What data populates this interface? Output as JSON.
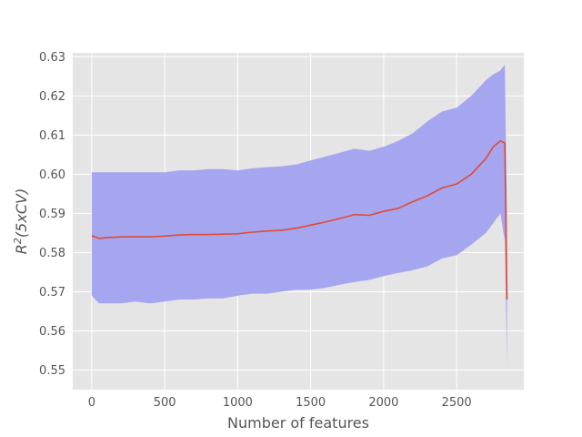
{
  "chart_data": {
    "type": "line",
    "title": "",
    "xlabel": "Number of features",
    "ylabel": "R²(5xCV)",
    "ylabel_parts": {
      "base": "R",
      "sup": "2",
      "rest": "(5xCV)"
    },
    "xlim": [
      -130,
      2960
    ],
    "ylim": [
      0.545,
      0.631
    ],
    "x_ticks": [
      0,
      500,
      1000,
      1500,
      2000,
      2500
    ],
    "y_ticks": [
      0.55,
      0.56,
      0.57,
      0.58,
      0.59,
      0.6,
      0.61,
      0.62,
      0.63
    ],
    "x_tick_labels": [
      "0",
      "500",
      "1000",
      "1500",
      "2000",
      "2500"
    ],
    "y_tick_labels": [
      "0.55",
      "0.56",
      "0.57",
      "0.58",
      "0.59",
      "0.60",
      "0.61",
      "0.62",
      "0.63"
    ],
    "grid": true,
    "style": {
      "background": "#e5e5e5",
      "grid_color": "#ffffff",
      "line_color": "#e24a33",
      "band_color": "#9d9fef"
    },
    "series": [
      {
        "x": [
          0,
          50,
          100,
          200,
          300,
          400,
          500,
          600,
          700,
          800,
          900,
          1000,
          1100,
          1200,
          1300,
          1400,
          1500,
          1600,
          1700,
          1800,
          1900,
          2000,
          2100,
          2200,
          2300,
          2400,
          2500,
          2600,
          2700,
          2750,
          2800,
          2830,
          2845
        ],
        "y": [
          0.5843,
          0.5836,
          0.5838,
          0.584,
          0.584,
          0.584,
          0.5842,
          0.5845,
          0.5846,
          0.5846,
          0.5847,
          0.5848,
          0.5852,
          0.5855,
          0.5857,
          0.5862,
          0.587,
          0.5878,
          0.5887,
          0.5897,
          0.5895,
          0.5905,
          0.5913,
          0.593,
          0.5945,
          0.5965,
          0.5975,
          0.6,
          0.604,
          0.607,
          0.6085,
          0.608,
          0.568
        ],
        "lower": [
          0.569,
          0.567,
          0.567,
          0.567,
          0.5675,
          0.567,
          0.5675,
          0.568,
          0.568,
          0.5683,
          0.5683,
          0.569,
          0.5695,
          0.5695,
          0.57,
          0.5705,
          0.5705,
          0.571,
          0.5718,
          0.5725,
          0.573,
          0.574,
          0.5748,
          0.5755,
          0.5765,
          0.5785,
          0.5793,
          0.582,
          0.585,
          0.5875,
          0.59,
          0.583,
          0.551
        ],
        "upper": [
          0.6005,
          0.6005,
          0.6005,
          0.6005,
          0.6005,
          0.6005,
          0.6005,
          0.601,
          0.601,
          0.6013,
          0.6013,
          0.601,
          0.6015,
          0.6018,
          0.602,
          0.6025,
          0.6035,
          0.6045,
          0.6055,
          0.6065,
          0.606,
          0.607,
          0.6085,
          0.6105,
          0.6135,
          0.616,
          0.617,
          0.62,
          0.624,
          0.6255,
          0.6265,
          0.628,
          0.59
        ]
      }
    ]
  }
}
